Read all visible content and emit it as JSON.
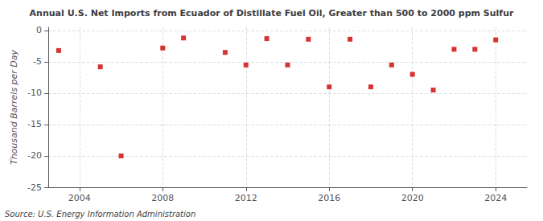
{
  "chart_data": {
    "type": "scatter",
    "title": "Annual U.S. Net Imports from Ecuador of Distillate Fuel Oil, Greater than 500 to 2000 ppm Sulfur",
    "y_label": "Thousand Barrels per Day",
    "annotations": [
      "Source: U.S. Energy Information Administration"
    ],
    "x": [
      2003,
      2005,
      2006,
      2008,
      2009,
      2011,
      2012,
      2013,
      2014,
      2015,
      2016,
      2017,
      2018,
      2019,
      2020,
      2021,
      2022,
      2023,
      2024
    ],
    "values": [
      -3.2,
      -5.8,
      -20.0,
      -2.8,
      -1.2,
      -3.5,
      -5.5,
      -1.3,
      -5.5,
      -1.4,
      -9.0,
      -1.4,
      -9.0,
      -5.5,
      -7.0,
      -9.5,
      -3.0,
      -3.0,
      -1.5
    ],
    "color": "#cc0000",
    "marker": "square",
    "xlim": [
      2002.5,
      2025.5
    ],
    "ylim": [
      -25,
      0.5
    ],
    "xticks": [
      2004,
      2008,
      2012,
      2016,
      2020,
      2024
    ],
    "yticks": [
      0,
      -5,
      -10,
      -15,
      -20,
      -25
    ],
    "grid": true
  }
}
